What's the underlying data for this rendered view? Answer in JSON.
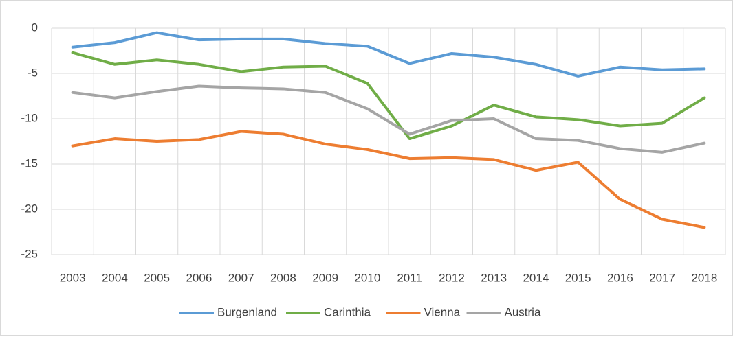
{
  "chart_data": {
    "type": "line",
    "categories": [
      "2003",
      "2004",
      "2005",
      "2006",
      "2007",
      "2008",
      "2009",
      "2010",
      "2011",
      "2012",
      "2013",
      "2014",
      "2015",
      "2016",
      "2017",
      "2018"
    ],
    "series": [
      {
        "name": "Burgenland",
        "color": "#5b9bd5",
        "values": [
          -2.1,
          -1.6,
          -0.5,
          -1.3,
          -1.2,
          -1.2,
          -1.7,
          -2.0,
          -3.9,
          -2.8,
          -3.2,
          -4.0,
          -5.3,
          -4.3,
          -4.6,
          -4.5
        ]
      },
      {
        "name": "Carinthia",
        "color": "#70ad47",
        "values": [
          -2.7,
          -4.0,
          -3.5,
          -4.0,
          -4.8,
          -4.3,
          -4.2,
          -6.1,
          -12.2,
          -10.8,
          -8.5,
          -9.8,
          -10.1,
          -10.8,
          -10.5,
          -7.7
        ]
      },
      {
        "name": "Vienna",
        "color": "#ed7d31",
        "values": [
          -13.0,
          -12.2,
          -12.5,
          -12.3,
          -11.4,
          -11.7,
          -12.8,
          -13.4,
          -14.4,
          -14.3,
          -14.5,
          -15.7,
          -14.8,
          -18.9,
          -21.1,
          -22.0
        ]
      },
      {
        "name": "Austria",
        "color": "#a5a5a5",
        "values": [
          -7.1,
          -7.7,
          -7.0,
          -6.4,
          -6.6,
          -6.7,
          -7.1,
          -8.9,
          -11.7,
          -10.2,
          -10.0,
          -12.2,
          -12.4,
          -13.3,
          -13.7,
          -12.7
        ]
      }
    ],
    "ylim": [
      -25,
      0
    ],
    "yticks": [
      -25,
      -20,
      -15,
      -10,
      -5,
      0
    ],
    "grid": true,
    "legend": "bottom"
  }
}
